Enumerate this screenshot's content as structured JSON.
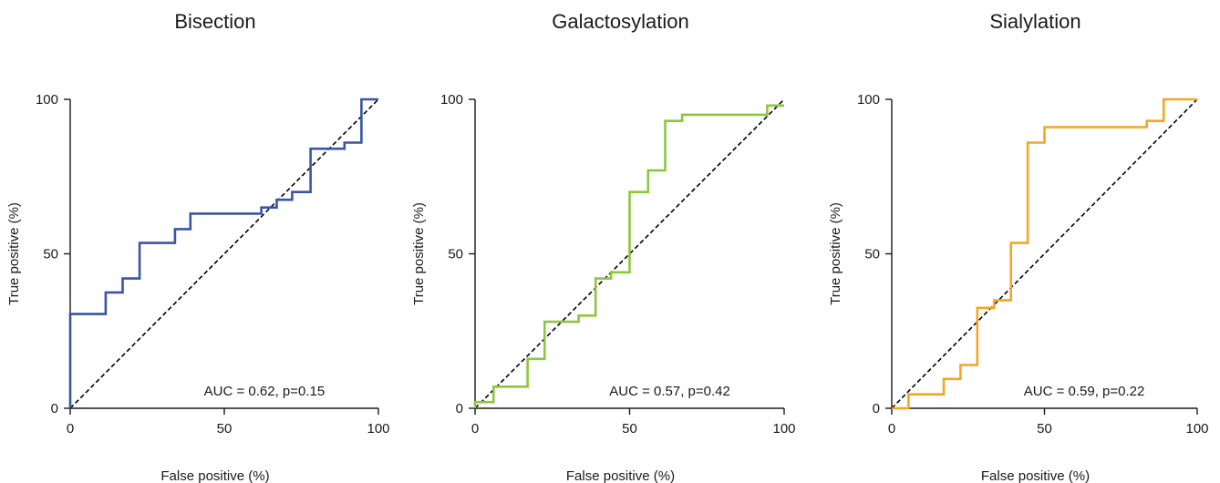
{
  "chart_data": [
    {
      "type": "line",
      "title": "Bisection",
      "xlabel": "False positive (%)",
      "ylabel": "True positive (%)",
      "xlim": [
        0,
        100
      ],
      "ylim": [
        0,
        100
      ],
      "xticks": [
        "0",
        "50",
        "100"
      ],
      "yticks": [
        "0",
        "50",
        "100"
      ],
      "color": "#3a55a4",
      "annotation": "AUC = 0.62, p=0.15",
      "reference_line": "diagonal-dashed",
      "series": [
        {
          "x": [
            0,
            0,
            11.5,
            11.5,
            17,
            17,
            22.5,
            22.5,
            34,
            34,
            39,
            39,
            62,
            62,
            67,
            67,
            72,
            72,
            78,
            78,
            89,
            89,
            94.5,
            94.5,
            100
          ],
          "y": [
            0,
            30.5,
            30.5,
            37.5,
            37.5,
            42,
            42,
            53.5,
            53.5,
            58,
            58,
            63,
            63,
            65,
            65,
            67.5,
            67.5,
            70,
            70,
            84,
            84,
            86,
            86,
            100,
            100
          ]
        }
      ]
    },
    {
      "type": "line",
      "title": "Galactosylation",
      "xlabel": "False positive (%)",
      "ylabel": "True positive (%)",
      "xlim": [
        0,
        100
      ],
      "ylim": [
        0,
        100
      ],
      "xticks": [
        "0",
        "50",
        "100"
      ],
      "yticks": [
        "0",
        "50",
        "100"
      ],
      "color": "#8dc63f",
      "annotation": "AUC = 0.57, p=0.42",
      "reference_line": "diagonal-dashed",
      "series": [
        {
          "x": [
            0,
            0,
            6,
            6,
            17,
            17,
            22.5,
            22.5,
            33.5,
            33.5,
            39,
            39,
            44,
            44,
            50,
            50,
            56,
            56,
            61.5,
            61.5,
            67,
            67,
            94.5,
            94.5,
            100
          ],
          "y": [
            0,
            2,
            2,
            7,
            7,
            16,
            16,
            28,
            28,
            30,
            30,
            42,
            42,
            44,
            44,
            70,
            70,
            77,
            77,
            93,
            93,
            95,
            95,
            98,
            98
          ]
        }
      ]
    },
    {
      "type": "line",
      "title": "Sialylation",
      "xlabel": "False positive (%)",
      "ylabel": "True positive (%)",
      "xlim": [
        0,
        100
      ],
      "ylim": [
        0,
        100
      ],
      "xticks": [
        "0",
        "50",
        "100"
      ],
      "yticks": [
        "0",
        "50",
        "100"
      ],
      "color": "#f5a623",
      "annotation": "AUC = 0.59, p=0.22",
      "reference_line": "diagonal-dashed",
      "series": [
        {
          "x": [
            0,
            5.5,
            5.5,
            17,
            17,
            22.5,
            22.5,
            28,
            28,
            33.5,
            33.5,
            39,
            39,
            44.5,
            44.5,
            50,
            50,
            83.5,
            83.5,
            89,
            89,
            100
          ],
          "y": [
            0,
            0,
            4.5,
            4.5,
            9.5,
            9.5,
            14,
            14,
            32.5,
            32.5,
            35,
            35,
            53.5,
            53.5,
            86,
            86,
            91,
            91,
            93,
            93,
            100,
            100
          ]
        }
      ]
    }
  ]
}
